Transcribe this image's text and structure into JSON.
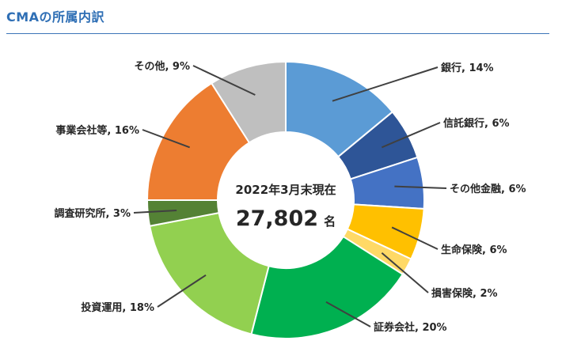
{
  "header": {
    "title": "CMAの所属内訳"
  },
  "center": {
    "caption": "2022年3月末現在",
    "total": "27,802",
    "unit": "名"
  },
  "chart_data": {
    "type": "pie",
    "donut": true,
    "categories": [
      "銀行",
      "信託銀行",
      "その他金融",
      "生命保険",
      "損害保険",
      "証券会社",
      "投資運用",
      "調査研究所",
      "事業会社等",
      "その他"
    ],
    "values": [
      14,
      6,
      6,
      6,
      2,
      20,
      18,
      3,
      16,
      9
    ],
    "labels": [
      "銀行, 14%",
      "信託銀行, 6%",
      "その他金融, 6%",
      "生命保険, 6%",
      "損害保険, 2%",
      "証券会社, 20%",
      "投資運用, 18%",
      "調査研究所, 3%",
      "事業会社等, 16%",
      "その他, 9%"
    ],
    "colors": [
      "#5b9bd5",
      "#2e5597",
      "#4472c4",
      "#ffc000",
      "#ffd966",
      "#00b050",
      "#92d050",
      "#548235",
      "#ed7d31",
      "#bfbfbf"
    ],
    "legend": "none"
  }
}
